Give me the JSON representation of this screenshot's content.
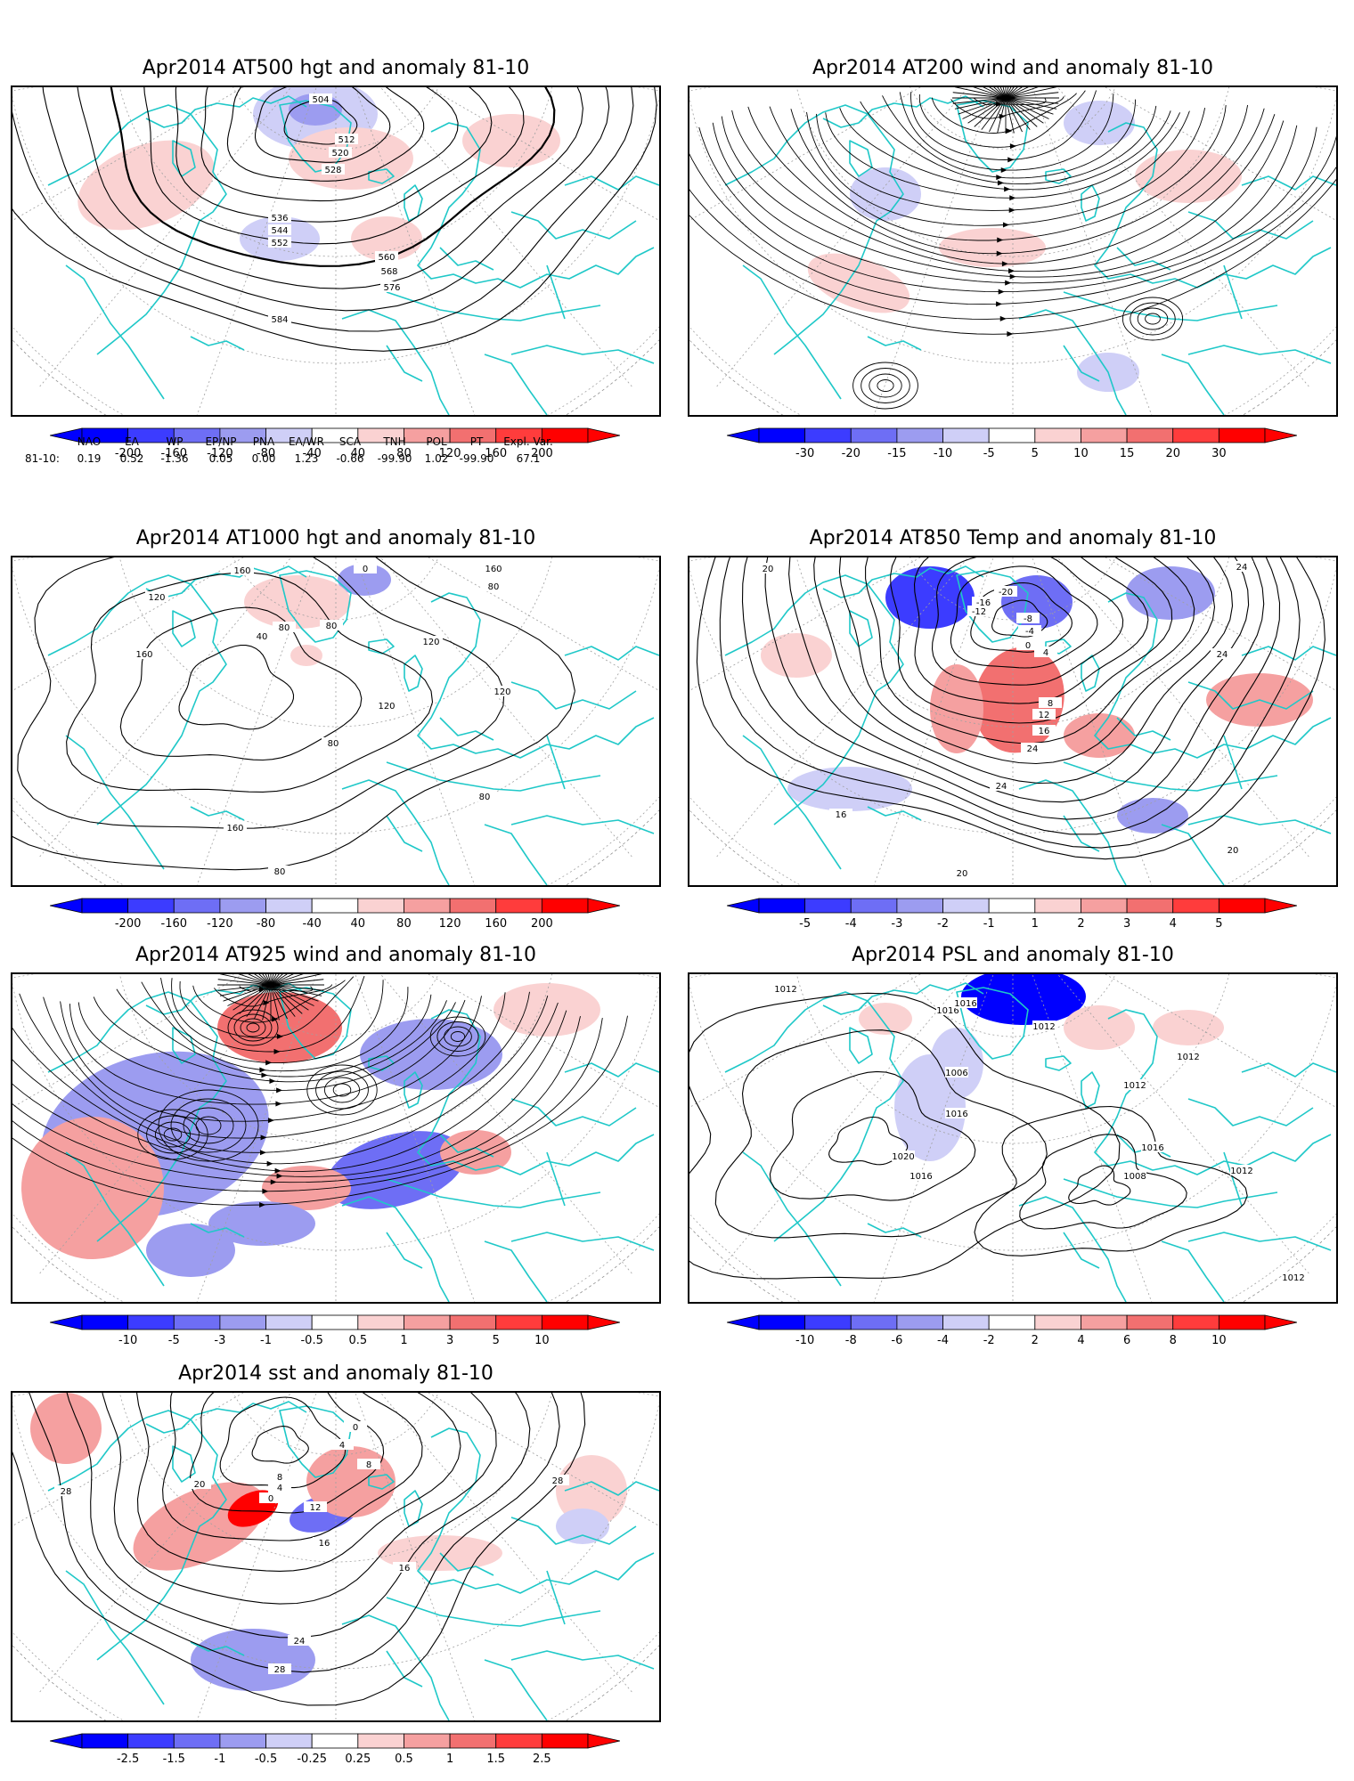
{
  "panels": [
    {
      "id": "at500",
      "title": "Apr2014 AT500 hgt and anomaly 81-10",
      "colorbar": [
        "-200",
        "-160",
        "-120",
        "-80",
        "-40",
        "40",
        "80",
        "120",
        "160",
        "200"
      ],
      "contour_labels": [
        "504",
        "512",
        "520",
        "528",
        "536",
        "544",
        "552",
        "560",
        "568",
        "576",
        "584"
      ]
    },
    {
      "id": "at200",
      "title": "Apr2014 AT200 wind and anomaly 81-10",
      "colorbar": [
        "-30",
        "-20",
        "-15",
        "-10",
        "-5",
        "5",
        "10",
        "15",
        "20",
        "30"
      ],
      "contour_labels": []
    },
    {
      "id": "at1000",
      "title": "Apr2014 AT1000 hgt and anomaly 81-10",
      "colorbar": [
        "-200",
        "-160",
        "-120",
        "-80",
        "-40",
        "40",
        "80",
        "120",
        "160",
        "200"
      ],
      "contour_labels": [
        "160",
        "120",
        "0",
        "40",
        "80",
        "80",
        "160",
        "80",
        "160",
        "120",
        "120",
        "80",
        "160",
        "120",
        "80",
        "80"
      ]
    },
    {
      "id": "at850",
      "title": "Apr2014 AT850 Temp and anomaly 81-10",
      "colorbar": [
        "-5",
        "-4",
        "-3",
        "-2",
        "-1",
        "1",
        "2",
        "3",
        "4",
        "5"
      ],
      "contour_labels": [
        "20",
        "24",
        "-20",
        "-16",
        "-12",
        "-8",
        "-4",
        "0",
        "4",
        "8",
        "12",
        "16",
        "24",
        "24",
        "16",
        "24",
        "20",
        "20"
      ]
    },
    {
      "id": "at925",
      "title": "Apr2014 AT925 wind and anomaly 81-10",
      "colorbar": [
        "-10",
        "-5",
        "-3",
        "-1",
        "-0.5",
        "0.5",
        "1",
        "3",
        "5",
        "10"
      ],
      "contour_labels": []
    },
    {
      "id": "psl",
      "title": "Apr2014 PSL and anomaly 81-10",
      "colorbar": [
        "-10",
        "-8",
        "-6",
        "-4",
        "-2",
        "2",
        "4",
        "6",
        "8",
        "10"
      ],
      "contour_labels": [
        "1012",
        "1016",
        "1016",
        "1012",
        "1006",
        "1016",
        "1020",
        "1016",
        "1012",
        "1012",
        "1016",
        "1012",
        "1008",
        "1012"
      ]
    },
    {
      "id": "sst",
      "title": "Apr2014 sst and anomaly 81-10",
      "colorbar": [
        "-2.5",
        "-1.5",
        "-1",
        "-0.5",
        "-0.25",
        "0.25",
        "0.5",
        "1",
        "1.5",
        "2.5"
      ],
      "contour_labels": [
        "28",
        "20",
        "0",
        "4",
        "8",
        "12",
        "16",
        "16",
        "24",
        "28",
        "28",
        "0",
        "4",
        "8"
      ]
    }
  ],
  "indices": {
    "headers": [
      "NAO",
      "EA",
      "WP",
      "EP/NP",
      "PNA",
      "EA/WR",
      "SCA",
      "TNH",
      "POL",
      "PT",
      "Expl. Var."
    ],
    "row_label": "81-10:",
    "values": [
      "0.19",
      "0.52",
      "-1.36",
      "0.05",
      "0.00",
      "1.23",
      "-0.66",
      "-99.90",
      "1.02",
      "-99.90",
      "67.1"
    ]
  },
  "colors": {
    "coast": "#1fc8c8",
    "contour": "#000000",
    "grid": "#a0a0a0",
    "neg": [
      "#0000ff",
      "#3c3cff",
      "#6e6ef5",
      "#9c9cf0",
      "#cfcff7"
    ],
    "pos": [
      "#fad2d2",
      "#f5a0a0",
      "#f27070",
      "#ff3c3c",
      "#ff0000"
    ]
  }
}
